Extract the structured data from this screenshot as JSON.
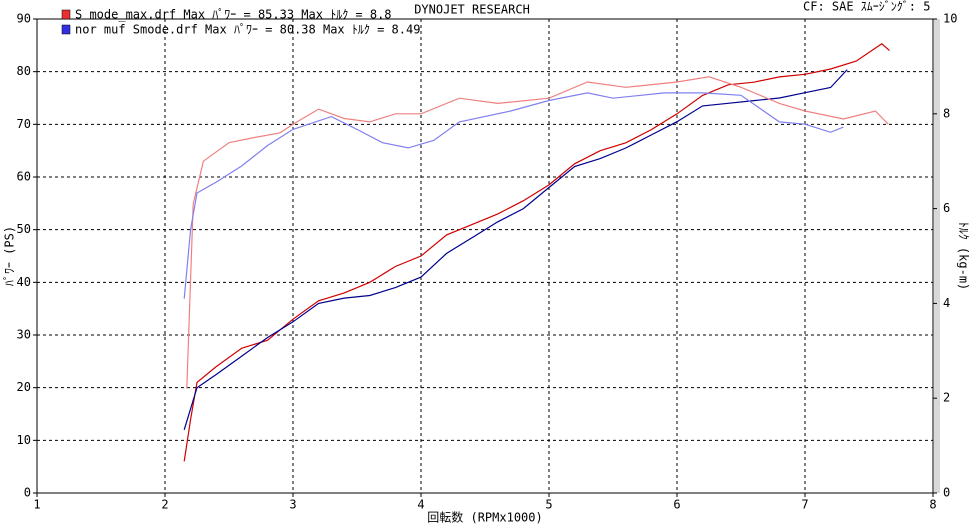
{
  "chart_data": {
    "type": "line",
    "title": "DYNOJET  RESEARCH",
    "subtitle": "CF: SAE  ｽﾑｰｼﾞﾝｸﾞ: 5",
    "x_label": "回転数 (RPMx1000)",
    "y_label": "ﾊﾟﾜｰ (PS)",
    "y2_label": "ﾄﾙｸ (kg-m)",
    "legend": [
      {
        "label": "S mode_max.drf Max ﾊﾟﾜｰ = 85.33    Max ﾄﾙｸ = 8.8",
        "color": "#e83030"
      },
      {
        "label": "nor muf Smode.drf Max ﾊﾟﾜｰ = 80.38    Max ﾄﾙｸ = 8.49",
        "color": "#3030e0"
      }
    ],
    "xlim": [
      1,
      8
    ],
    "xticks": [
      1,
      2,
      3,
      4,
      5,
      6,
      7,
      8
    ],
    "ylim": [
      0,
      90
    ],
    "yticks": [
      0,
      10,
      20,
      30,
      40,
      50,
      60,
      70,
      80,
      90
    ],
    "y2lim": [
      0,
      10
    ],
    "y2ticks": [
      0,
      2,
      4,
      6,
      8,
      10
    ],
    "grid": true,
    "series": [
      {
        "color": "#d00000",
        "axis": "y",
        "x": [
          2.15,
          2.2,
          2.25,
          2.4,
          2.6,
          2.8,
          3.0,
          3.2,
          3.4,
          3.6,
          3.8,
          4.0,
          4.2,
          4.4,
          4.6,
          4.8,
          5.0,
          5.2,
          5.4,
          5.6,
          5.8,
          6.0,
          6.2,
          6.4,
          6.6,
          6.8,
          7.0,
          7.2,
          7.4,
          7.6,
          7.66
        ],
        "values": [
          6,
          14,
          21,
          24,
          27.5,
          29,
          33,
          36.5,
          38,
          40,
          43,
          45,
          49,
          51,
          53,
          55.5,
          58.5,
          62.5,
          65,
          66.5,
          69,
          72,
          75.5,
          77.5,
          78,
          79,
          79.5,
          80.5,
          82,
          85.3,
          84
        ]
      },
      {
        "color": "#000090",
        "axis": "y",
        "x": [
          2.15,
          2.25,
          2.4,
          2.6,
          2.8,
          3.0,
          3.2,
          3.4,
          3.6,
          3.8,
          4.0,
          4.2,
          4.4,
          4.6,
          4.8,
          5.0,
          5.2,
          5.4,
          5.6,
          5.8,
          6.0,
          6.2,
          6.4,
          6.6,
          6.8,
          7.0,
          7.2,
          7.33
        ],
        "values": [
          12,
          20,
          22.5,
          26,
          29.5,
          32.5,
          36,
          37,
          37.5,
          39,
          41,
          45.5,
          48.5,
          51.5,
          54,
          58,
          62,
          63.5,
          65.5,
          68,
          70.5,
          73.5,
          74,
          74.5,
          75,
          76,
          77,
          80.4
        ]
      },
      {
        "color": "#f08080",
        "axis": "y2",
        "x": [
          2.17,
          2.22,
          2.3,
          2.5,
          2.7,
          2.9,
          3.0,
          3.2,
          3.4,
          3.6,
          3.8,
          4.0,
          4.3,
          4.6,
          5.0,
          5.3,
          5.6,
          6.0,
          6.25,
          6.5,
          6.8,
          7.0,
          7.3,
          7.55,
          7.65
        ],
        "values": [
          2.2,
          6.1,
          7.0,
          7.39,
          7.5,
          7.6,
          7.78,
          8.1,
          7.9,
          7.83,
          8.0,
          8.0,
          8.33,
          8.22,
          8.33,
          8.67,
          8.56,
          8.67,
          8.78,
          8.56,
          8.22,
          8.06,
          7.89,
          8.06,
          7.78
        ]
      },
      {
        "color": "#8080f0",
        "axis": "y2",
        "x": [
          2.15,
          2.2,
          2.25,
          2.4,
          2.6,
          2.8,
          3.0,
          3.3,
          3.5,
          3.7,
          3.9,
          4.1,
          4.3,
          4.7,
          5.0,
          5.3,
          5.5,
          5.9,
          6.2,
          6.5,
          6.8,
          7.0,
          7.2,
          7.3
        ],
        "values": [
          4.1,
          5.56,
          6.33,
          6.56,
          6.9,
          7.33,
          7.67,
          7.94,
          7.67,
          7.39,
          7.28,
          7.44,
          7.83,
          8.06,
          8.28,
          8.44,
          8.33,
          8.44,
          8.44,
          8.39,
          7.83,
          7.78,
          7.61,
          7.72
        ]
      }
    ]
  }
}
